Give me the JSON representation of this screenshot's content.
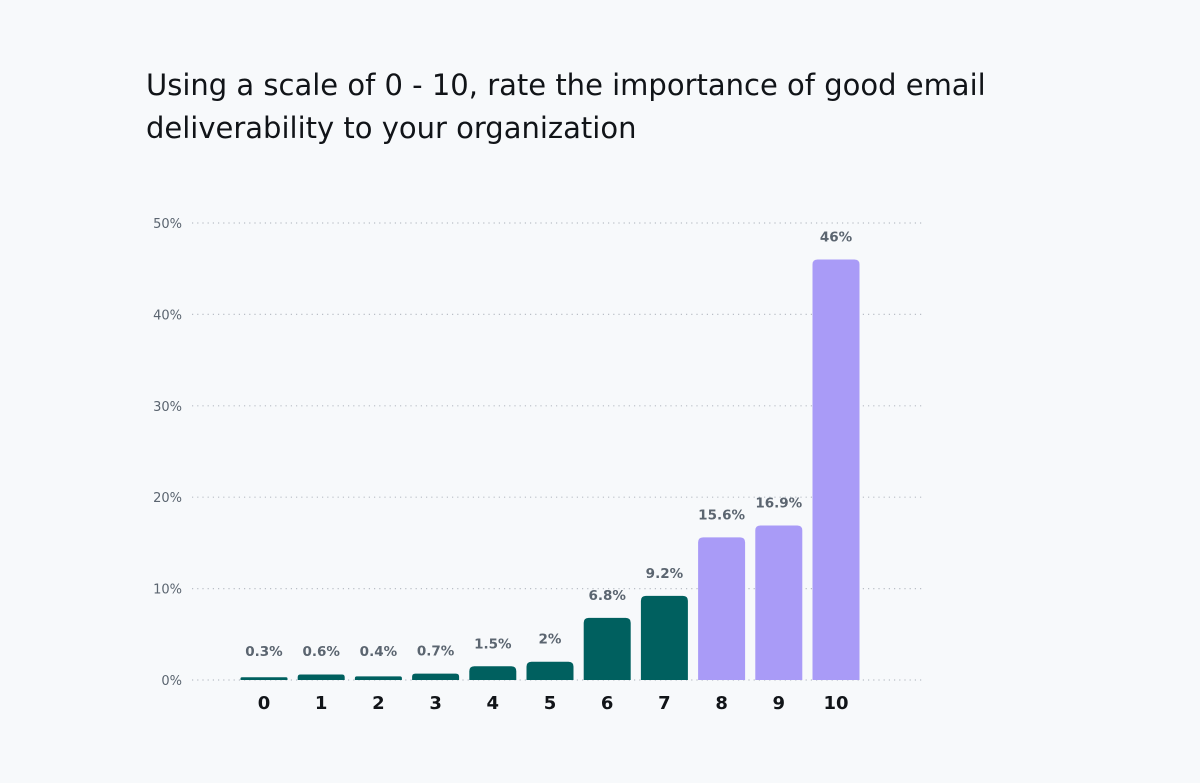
{
  "chart_data": {
    "type": "bar",
    "title": "Using a scale of 0 - 10, rate the importance of good email deliverability to your organization",
    "xlabel": "",
    "ylabel": "",
    "categories": [
      "0",
      "1",
      "2",
      "3",
      "4",
      "5",
      "6",
      "7",
      "8",
      "9",
      "10"
    ],
    "values": [
      0.3,
      0.6,
      0.4,
      0.7,
      1.5,
      2,
      6.8,
      9.2,
      15.6,
      16.9,
      46
    ],
    "value_labels": [
      "0.3%",
      "0.6%",
      "0.4%",
      "0.7%",
      "1.5%",
      "2%",
      "6.8%",
      "9.2%",
      "15.6%",
      "16.9%",
      "46%"
    ],
    "yticks": [
      0,
      10,
      20,
      30,
      40,
      50
    ],
    "ytick_labels": [
      "0%",
      "10%",
      "20%",
      "30%",
      "40%",
      "50%"
    ],
    "ylim": [
      0,
      50
    ],
    "grid": true,
    "legend": "none",
    "colors": {
      "low": "#00605f",
      "high": "#a99bf7",
      "high_from_category": "8",
      "grid": "#b9bec6",
      "tick_text": "#5b6570",
      "value_text": "#5b6570",
      "category_text": "#111418"
    }
  }
}
